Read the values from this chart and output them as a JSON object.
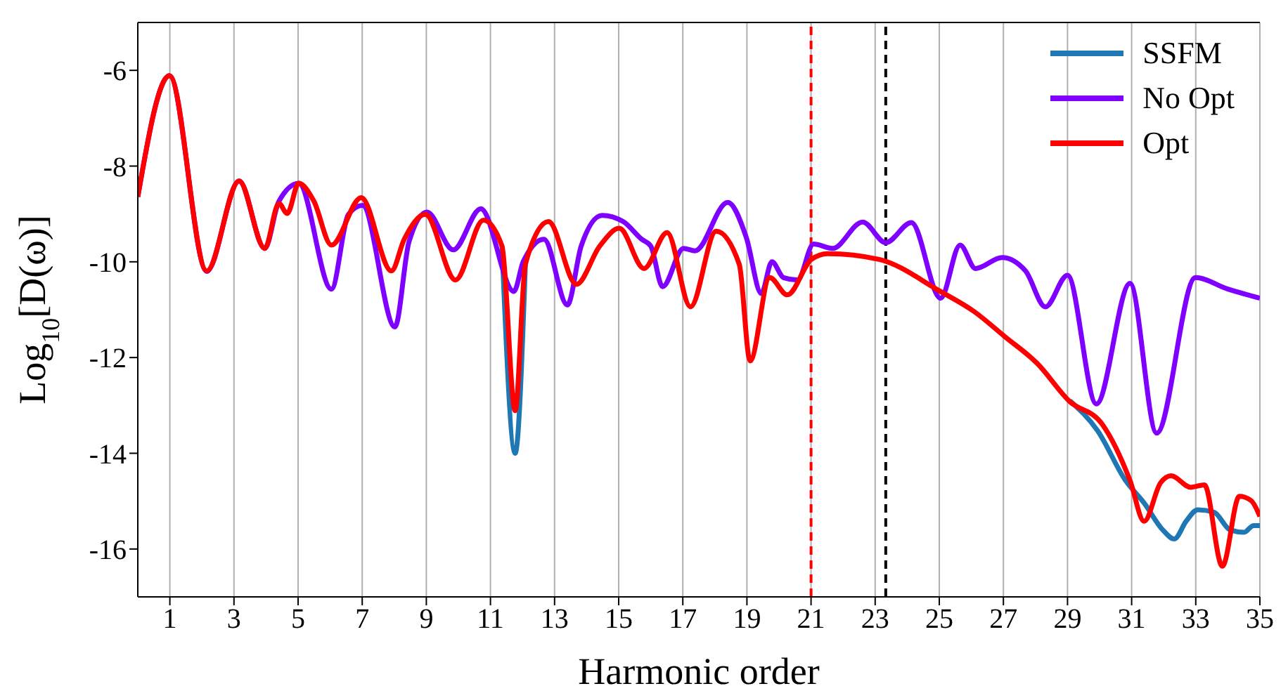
{
  "chart_data": {
    "type": "line",
    "xlabel": "Harmonic order",
    "ylabel": "Log$_{10}$[D(ω)]",
    "xlim": [
      0,
      35
    ],
    "ylim": [
      -17,
      -5
    ],
    "xticks": [
      1,
      3,
      5,
      7,
      9,
      11,
      13,
      15,
      17,
      19,
      21,
      23,
      25,
      27,
      29,
      31,
      33,
      35
    ],
    "yticks": [
      -16,
      -14,
      -12,
      -10,
      -8,
      -6
    ],
    "grid": "x",
    "legend": "top right",
    "marker": "none",
    "line_style": "solid",
    "series": [
      {
        "name": "SSFM",
        "color": "#1f77b4",
        "x": [
          11.36,
          11.77,
          12.09,
          19.1,
          29.07,
          29.94,
          30.81,
          31.39,
          31.97,
          32.33,
          32.7,
          33.06,
          33.57,
          34.07,
          34.51,
          34.8,
          35
        ],
        "values": [
          -9.67,
          -14.0,
          -10.05,
          null,
          -12.9,
          -13.53,
          -14.57,
          -15.04,
          -15.6,
          -15.79,
          -15.42,
          -15.18,
          -15.23,
          -15.6,
          -15.65,
          -15.51,
          -15.51
        ]
      },
      {
        "name": "No Opt",
        "color": "#7f00ff",
        "x": [
          0,
          0.99,
          2.15,
          3.16,
          3.96,
          4.4,
          5.02,
          6.04,
          6.57,
          7.01,
          8.02,
          8.46,
          9.02,
          9.84,
          10.7,
          11.73,
          12.02,
          12.67,
          13.4,
          13.83,
          14.48,
          15.14,
          15.72,
          16.0,
          16.37,
          17.02,
          17.38,
          18.4,
          18.98,
          19.45,
          19.78,
          20.14,
          20.58,
          21.08,
          21.67,
          22.61,
          23.33,
          24.13,
          25.04,
          25.65,
          26.13,
          26.96,
          27.69,
          28.31,
          29.0,
          29.9,
          30.95,
          31.78,
          32.99,
          34.0,
          35
        ],
        "values": [
          -8.64,
          -6.11,
          -10.2,
          -8.31,
          -9.72,
          -8.74,
          -8.36,
          -10.57,
          -9.01,
          -8.82,
          -11.36,
          -9.58,
          -8.96,
          -9.75,
          -8.89,
          -10.62,
          -10.0,
          -9.53,
          -10.9,
          -9.67,
          -9.03,
          -9.16,
          -9.53,
          -9.67,
          -10.52,
          -9.72,
          -9.77,
          -8.76,
          -9.49,
          -10.66,
          -10.0,
          -10.33,
          -10.38,
          -9.63,
          -9.72,
          -9.17,
          -9.6,
          -9.18,
          -10.76,
          -9.65,
          -10.14,
          -9.91,
          -10.19,
          -10.94,
          -10.28,
          -12.97,
          -10.45,
          -13.58,
          -10.33,
          -10.57,
          -10.76
        ]
      },
      {
        "name": "Opt",
        "color": "#ff0000",
        "x": [
          0,
          0.99,
          2.15,
          3.16,
          3.96,
          4.4,
          4.66,
          5.02,
          5.49,
          6.04,
          6.97,
          7.91,
          8.31,
          8.97,
          9.91,
          10.78,
          11.36,
          11.77,
          12.09,
          12.81,
          13.68,
          14.41,
          15.02,
          15.79,
          16.51,
          17.24,
          18.04,
          18.76,
          19.1,
          19.71,
          20.26,
          21.01,
          21.52,
          23.12,
          25.04,
          26.09,
          27.04,
          28.05,
          29.07,
          30.08,
          30.95,
          31.39,
          31.9,
          32.23,
          32.84,
          33.27,
          33.83,
          34.36,
          34.73,
          35
        ],
        "values": [
          -8.64,
          -6.11,
          -10.19,
          -8.31,
          -9.72,
          -8.78,
          -8.99,
          -8.36,
          -8.73,
          -9.65,
          -8.66,
          -10.19,
          -9.53,
          -9.01,
          -10.38,
          -9.13,
          -9.67,
          -13.11,
          -10.05,
          -9.16,
          -10.47,
          -9.67,
          -9.3,
          -10.14,
          -9.39,
          -10.94,
          -9.36,
          -10.05,
          -12.07,
          -10.33,
          -10.69,
          -9.95,
          -9.83,
          -9.95,
          -10.62,
          -11.04,
          -11.56,
          -12.12,
          -12.92,
          -13.39,
          -14.57,
          -15.42,
          -14.62,
          -14.47,
          -14.71,
          -14.66,
          -16.36,
          -14.9,
          -14.99,
          -15.32
        ]
      }
    ],
    "ref_lines": [
      {
        "axis": "x",
        "value": 21,
        "color": "#ff0000",
        "line_style": "dashed"
      },
      {
        "axis": "x",
        "value": 23.33,
        "color": "#000000",
        "line_style": "dashed"
      }
    ]
  }
}
